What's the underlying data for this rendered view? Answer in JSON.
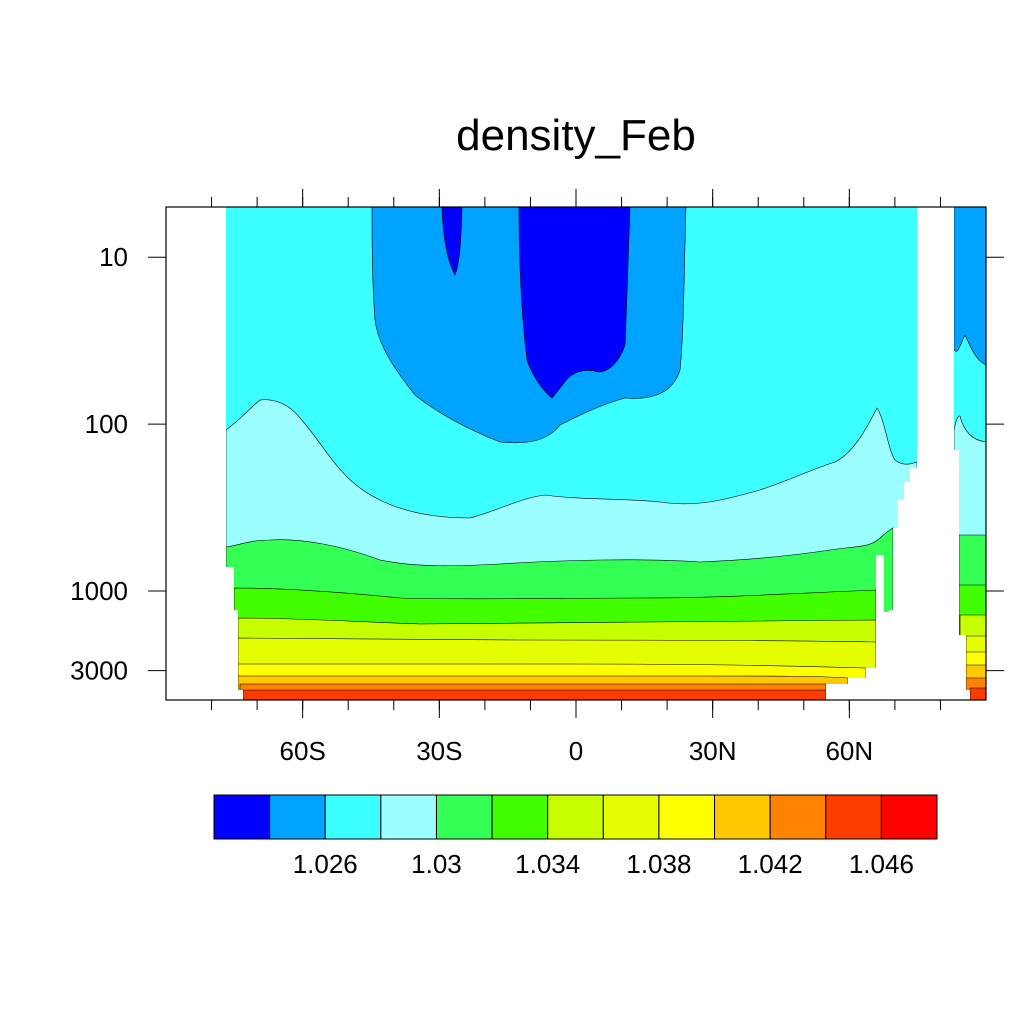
{
  "chart_data": {
    "type": "contour",
    "title": "density_Feb",
    "xlabel": "",
    "ylabel": "",
    "x_axis": {
      "range": [
        -90,
        90
      ],
      "ticks": [
        {
          "value": -60,
          "label": "60S"
        },
        {
          "value": -30,
          "label": "30S"
        },
        {
          "value": 0,
          "label": "0"
        },
        {
          "value": 30,
          "label": "30N"
        },
        {
          "value": 60,
          "label": "60N"
        }
      ],
      "minor_tick_step": 10
    },
    "y_axis": {
      "scale": "log",
      "reversed": true,
      "range": [
        5,
        4500
      ],
      "ticks": [
        {
          "value": 10,
          "label": "10"
        },
        {
          "value": 100,
          "label": "100"
        },
        {
          "value": 1000,
          "label": "1000"
        },
        {
          "value": 3000,
          "label": "3000"
        }
      ]
    },
    "colorbar": {
      "orientation": "horizontal",
      "position": "bottom",
      "colors": [
        "#0000ff",
        "#00a3ff",
        "#3cffff",
        "#9bffff",
        "#33ff55",
        "#42ff00",
        "#c8ff00",
        "#e6ff00",
        "#ffff00",
        "#ffc800",
        "#ff8200",
        "#ff3c00",
        "#ff0000"
      ],
      "labels": [
        {
          "index": 2,
          "label": "1.026"
        },
        {
          "index": 4,
          "label": "1.03"
        },
        {
          "index": 6,
          "label": "1.034"
        },
        {
          "index": 8,
          "label": "1.038"
        },
        {
          "index": 10,
          "label": "1.042"
        },
        {
          "index": 12,
          "label": "1.046"
        }
      ]
    },
    "levels": [
      1.024,
      1.026,
      1.028,
      1.03,
      1.032,
      1.034,
      1.036,
      1.038,
      1.04,
      1.042,
      1.044,
      1.046
    ],
    "grid": false
  }
}
